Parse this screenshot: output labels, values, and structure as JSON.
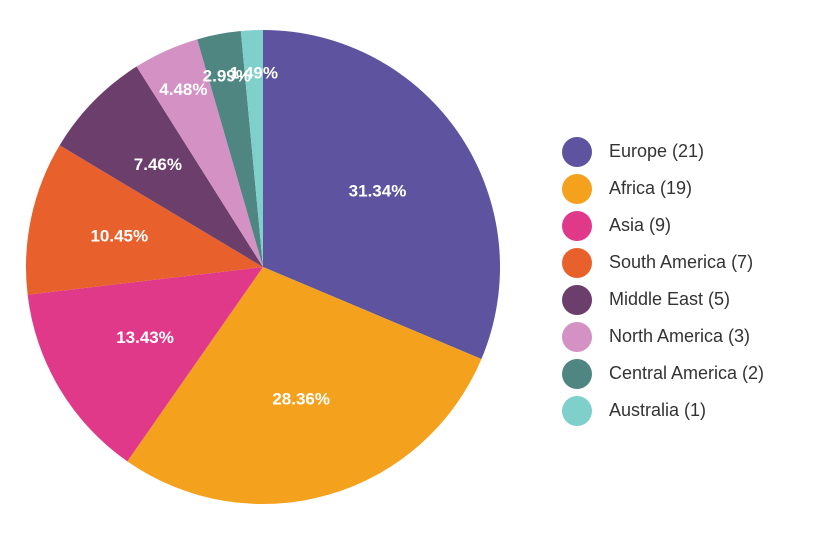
{
  "chart_data": {
    "type": "pie",
    "title": "",
    "legend_position": "right",
    "slices": [
      {
        "label": "Europe (21)",
        "value": 21,
        "percent_label": "31.34%",
        "color": "#5e539f"
      },
      {
        "label": "Africa (19)",
        "value": 19,
        "percent_label": "28.36%",
        "color": "#f4a11d"
      },
      {
        "label": "Asia (9)",
        "value": 9,
        "percent_label": "13.43%",
        "color": "#e0398a"
      },
      {
        "label": "South America (7)",
        "value": 7,
        "percent_label": "10.45%",
        "color": "#e8612c"
      },
      {
        "label": "Middle East (5)",
        "value": 5,
        "percent_label": "7.46%",
        "color": "#6b3e6b"
      },
      {
        "label": "North America (3)",
        "value": 3,
        "percent_label": "4.48%",
        "color": "#d392c3"
      },
      {
        "label": "Central America (2)",
        "value": 2,
        "percent_label": "2.99%",
        "color": "#4f8682"
      },
      {
        "label": "Australia (1)",
        "value": 1,
        "percent_label": "1.49%",
        "color": "#7fcfcb"
      }
    ]
  }
}
